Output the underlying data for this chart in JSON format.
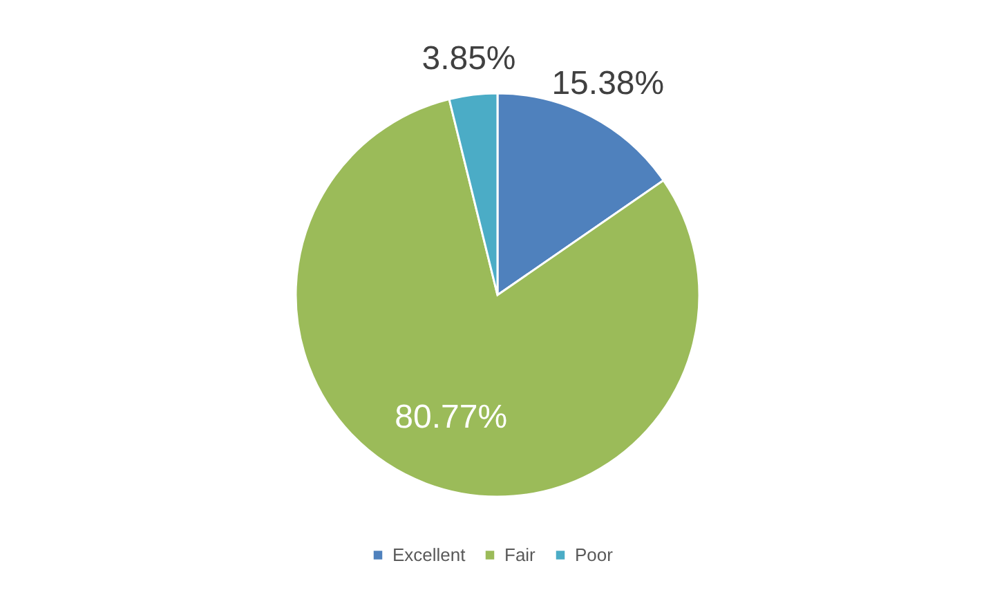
{
  "chart_data": {
    "type": "pie",
    "categories": [
      "Excellent",
      "Fair",
      "Poor"
    ],
    "values": [
      15.38,
      80.77,
      3.85
    ],
    "colors": [
      "#4f81bd",
      "#9bbb59",
      "#4bacc6"
    ],
    "value_labels": [
      "15.38%",
      "80.77%",
      "3.85%"
    ],
    "legend": "bottom"
  }
}
